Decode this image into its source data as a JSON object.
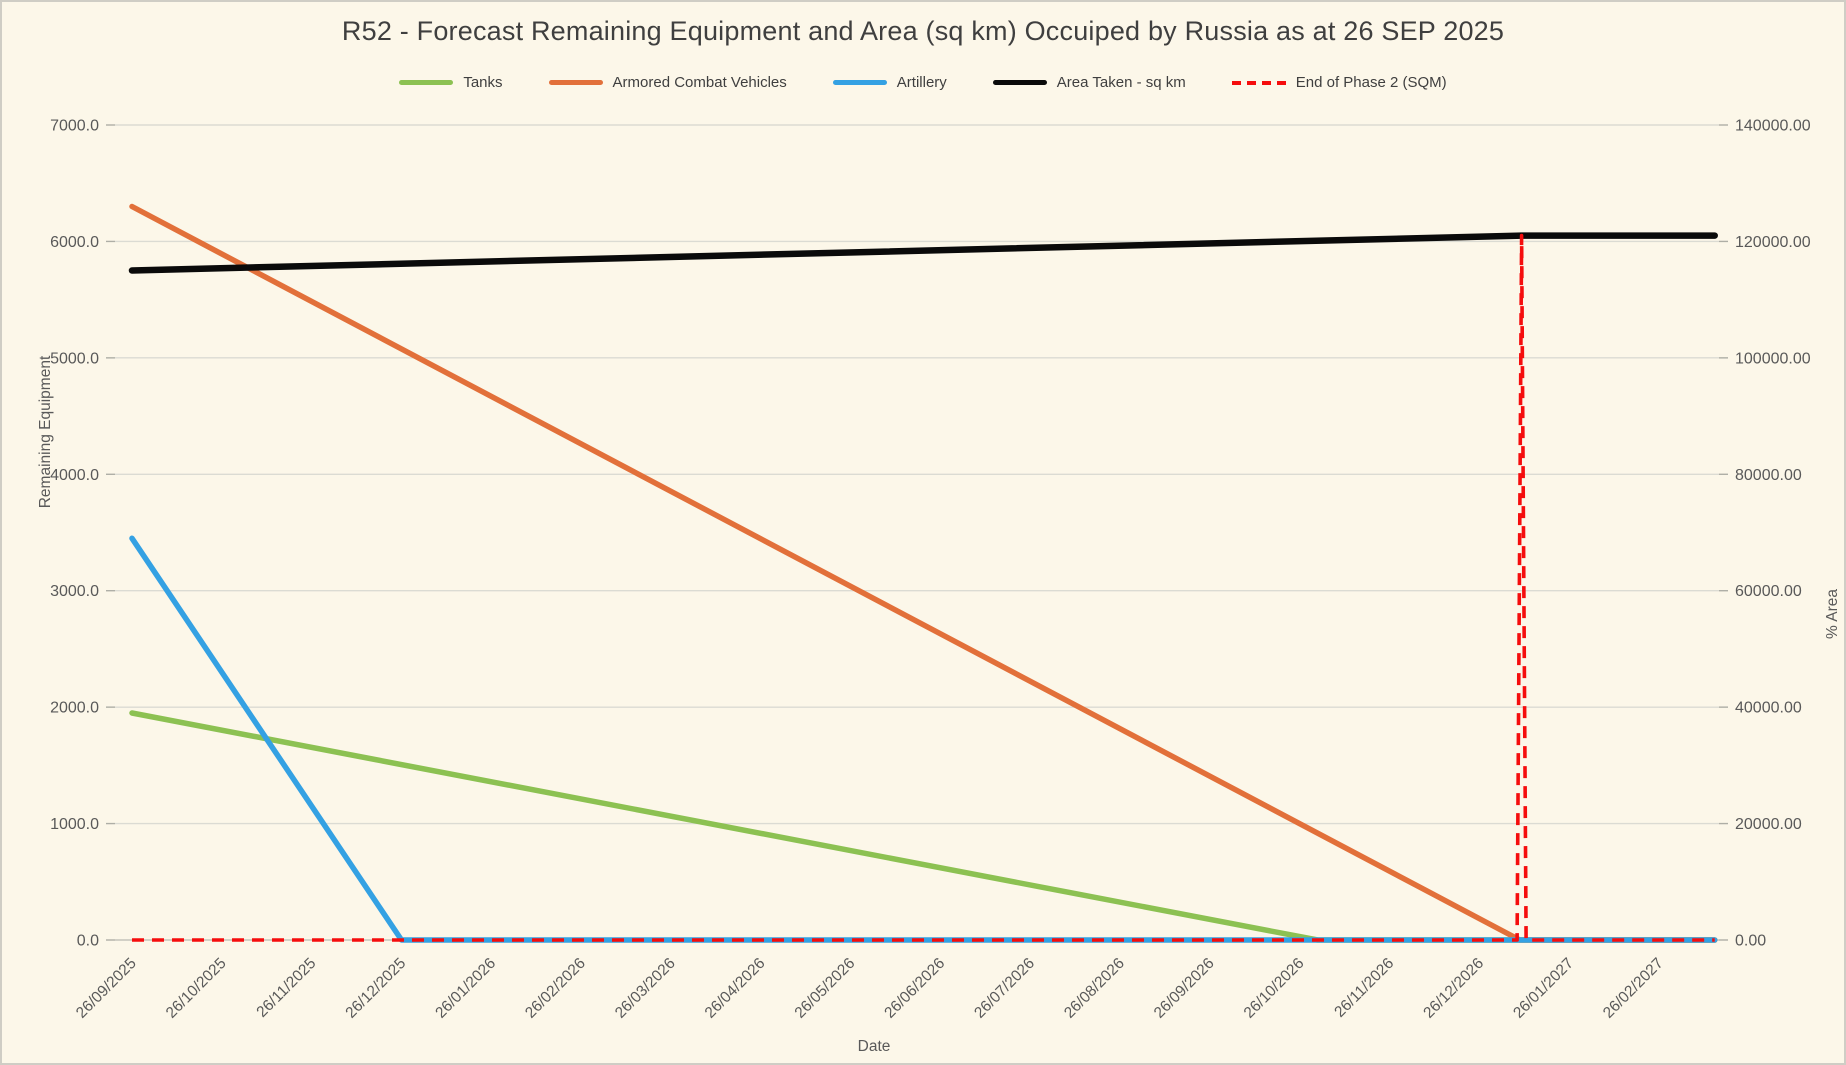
{
  "title": "R52 - Forecast Remaining Equipment and Area (sq km) Occuiped by Russia as at 26 SEP 2025",
  "colors": {
    "background": "#FCF7E9",
    "gridline": "#DBDBD3",
    "zero_line": "#C3C3BB",
    "tick_text": "#595959",
    "title_text": "#3F3F3F",
    "tanks": "#8CC152",
    "armored_combat_vehicles": "#E2703A",
    "artillery": "#34A1E3",
    "area_taken": "#0A0A0A",
    "end_of_phase_2": "#F50D0D"
  },
  "axes": {
    "x_title": "Date",
    "y_left_title": "Remaining Equipment",
    "y_right_title": "% Area",
    "y_left_ticks": [
      "0.0",
      "1000.0",
      "2000.0",
      "3000.0",
      "4000.0",
      "5000.0",
      "6000.0",
      "7000.0"
    ],
    "y_right_ticks": [
      "0.00",
      "20000.00",
      "40000.00",
      "60000.00",
      "80000.00",
      "100000.00",
      "120000.00",
      "140000.00"
    ],
    "x_ticks": [
      "26/09/2025",
      "26/10/2025",
      "26/11/2025",
      "26/12/2025",
      "26/01/2026",
      "26/02/2026",
      "26/03/2026",
      "26/04/2026",
      "26/05/2026",
      "26/06/2026",
      "26/07/2026",
      "26/08/2026",
      "26/09/2026",
      "26/10/2026",
      "26/11/2026",
      "26/12/2026",
      "26/01/2027",
      "26/02/2027"
    ]
  },
  "chart_data": {
    "type": "line",
    "title": "R52 - Forecast Remaining Equipment and Area (sq km) Occuiped by Russia as at 26 SEP 2025",
    "x_axis_label": "Date",
    "x_unit": "months since 26/09/2025 (tick labels monthly, lines extend ~0.6 month past last tick)",
    "x_categories": [
      "26/09/2025",
      "26/10/2025",
      "26/11/2025",
      "26/12/2025",
      "26/01/2026",
      "26/02/2026",
      "26/03/2026",
      "26/04/2026",
      "26/05/2026",
      "26/06/2026",
      "26/07/2026",
      "26/08/2026",
      "26/09/2026",
      "26/10/2026",
      "26/11/2026",
      "26/12/2026",
      "26/01/2027",
      "26/02/2027"
    ],
    "y_left": {
      "label": "Remaining Equipment",
      "range": [
        0,
        7000
      ],
      "tick_step": 1000
    },
    "y_right": {
      "label": "% Area",
      "range": [
        0,
        140000
      ],
      "tick_step": 20000
    },
    "grid": true,
    "legend_position": "top",
    "series": [
      {
        "name": "Tanks",
        "color": "#8CC152",
        "axis": "left",
        "dash": null,
        "stroke_width": 5.5,
        "points": [
          [
            0,
            1950
          ],
          [
            13.2,
            0
          ],
          [
            17.62,
            0
          ]
        ],
        "note": "linear decline from ~1950 on 26/09/2025, reaches 0 around 01/11/2026, flat 0 after"
      },
      {
        "name": "Armored Combat Vehicles",
        "color": "#E2703A",
        "axis": "left",
        "dash": null,
        "stroke_width": 5.5,
        "points": [
          [
            0,
            6300
          ],
          [
            15.45,
            0
          ],
          [
            17.62,
            0
          ]
        ],
        "note": "linear decline from ~6300 on 26/09/2025, reaches 0 around 07/01/2027, flat 0 after"
      },
      {
        "name": "Artillery",
        "color": "#34A1E3",
        "axis": "left",
        "dash": null,
        "stroke_width": 5.5,
        "points": [
          [
            0,
            3450
          ],
          [
            3.0,
            0
          ],
          [
            17.62,
            0
          ]
        ],
        "note": "steep linear decline from ~3450 on 26/09/2025, reaches 0 at 26/12/2025, flat 0 after"
      },
      {
        "name": "Area Taken - sq km",
        "color": "#0A0A0A",
        "axis": "right",
        "dash": null,
        "stroke_width": 6.5,
        "points": [
          [
            0,
            115000
          ],
          [
            15.47,
            121000
          ],
          [
            17.62,
            121000
          ]
        ],
        "note": "slow rise from ~115000 sq km to ~121000 sq km at end of phase 2, then flat"
      },
      {
        "name": "End of Phase 2 (SQM)",
        "color": "#F50D0D",
        "axis": "right",
        "dash": "12 8",
        "stroke_width": 3.6,
        "points": [
          [
            0,
            0
          ],
          [
            15.42,
            0
          ],
          [
            15.47,
            121000
          ],
          [
            15.52,
            0
          ],
          [
            17.62,
            0
          ]
        ],
        "note": "red dashed marker: 0 along baseline with a vertical spike to the area value (~121000) at ~07/01/2027"
      }
    ]
  }
}
